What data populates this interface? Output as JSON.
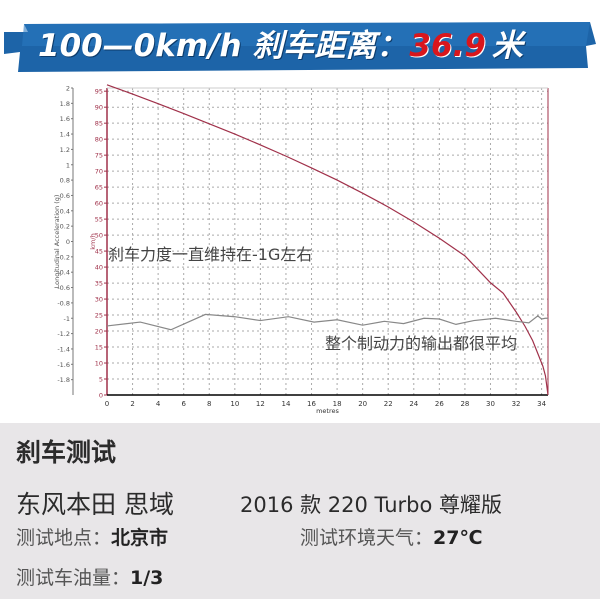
{
  "banner": {
    "prefix": "100—0km/h 刹车距离：",
    "value": "36.9",
    "unit": "米",
    "bg_color": "#1d64a8",
    "value_color": "#d9161c"
  },
  "annotations": [
    "刹车力度一直维持在-1G左右",
    "整个制动力的输出都很平均"
  ],
  "chart_data": {
    "type": "line",
    "xlabel": "metres",
    "ylabel_left": "Longitudinal Acceleration (g)",
    "ylabel_right": "km/h",
    "xlim": [
      0,
      34.5
    ],
    "ylim_left": [
      -2,
      2
    ],
    "ylim_speed": [
      0,
      96
    ],
    "x_ticks": [
      0,
      2,
      4,
      6,
      8,
      10,
      12,
      14,
      16,
      18,
      20,
      22,
      24,
      26,
      28,
      30,
      32,
      34
    ],
    "g_ticks": [
      2,
      1.8,
      1.6,
      1.4,
      1.2,
      1,
      0.8,
      0.6,
      0.4,
      0.2,
      0,
      -0.2,
      -0.4,
      -0.6,
      -0.8,
      -1,
      -1.2,
      -1.4,
      -1.6,
      -1.8
    ],
    "speed_ticks": [
      0,
      5,
      10,
      15,
      20,
      25,
      30,
      35,
      40,
      45,
      50,
      55,
      60,
      65,
      70,
      75,
      80,
      85,
      90,
      95
    ],
    "grid": true,
    "series": [
      {
        "axis": "speed",
        "color": "#a0314a",
        "x": [
          0,
          2,
          4,
          6,
          8,
          10,
          12,
          14,
          16,
          18,
          20,
          22,
          24,
          26,
          28,
          30,
          31,
          32,
          32.7,
          33.3,
          33.8,
          34.1,
          34.3,
          34.5
        ],
        "y": [
          97,
          94.1,
          91.1,
          88,
          84.8,
          81.6,
          78.2,
          74.7,
          71,
          67.2,
          63.1,
          58.8,
          54.1,
          49,
          43.5,
          35.1,
          31.8,
          26,
          21.5,
          17,
          12,
          9,
          6,
          0
        ]
      },
      {
        "axis": "g",
        "color": "#888888",
        "x": [
          0,
          2.6,
          5,
          7.7,
          10,
          12,
          14.2,
          16.2,
          18,
          20,
          21.7,
          23.2,
          24.8,
          26,
          27.3,
          28.7,
          30.4,
          32,
          33,
          33.7,
          34,
          34.3,
          34.5
        ],
        "y": [
          -1.1,
          -1.05,
          -1.15,
          -0.95,
          -0.98,
          -1.03,
          -0.98,
          -1.05,
          -1.02,
          -1.09,
          -1.04,
          -1.07,
          -1.0,
          -1.01,
          -1.08,
          -1.03,
          -1.0,
          -1.04,
          -1.06,
          -0.97,
          -1.01,
          -1.0,
          -1.0
        ]
      }
    ]
  },
  "panel": {
    "title": "刹车测试",
    "car": "东风本田 思域",
    "model": "2016 款 220 Turbo 尊耀版",
    "location_label": "测试地点：",
    "location": "北京市",
    "weather_label": "测试环境天气：",
    "weather": "27℃",
    "fuel_label": "测试车油量：",
    "fuel": "1/3"
  }
}
